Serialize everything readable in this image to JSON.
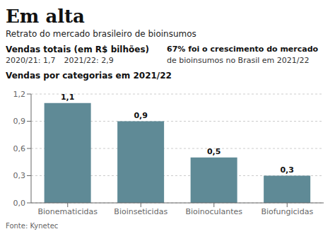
{
  "chart_data": {
    "type": "bar",
    "title": "Em alta",
    "subtitle": "Retrato do mercado brasileiro de bioinsumos",
    "annotations": [
      "Vendas totais (em R$ bilhões)",
      "2020/21: 1,7",
      "2021/22: 2,9",
      "67% foi o crescimento do mercado",
      "de bioinsumos no Brasil em 2021/22",
      "Vendas por categorias em 2021/22",
      "Fonte: Kynetec"
    ],
    "categories": [
      "Bionematicidas",
      "Bioinseticidas",
      "Bioinoculantes",
      "Biofungicidas"
    ],
    "values": [
      1.1,
      0.9,
      0.5,
      0.3
    ],
    "value_labels": [
      "1,1",
      "0,9",
      "0,5",
      "0,3"
    ],
    "color": "#5f8a96",
    "ylim": [
      0,
      1.2
    ],
    "yticks": [
      {
        "value": 0.0,
        "label": "0,0"
      },
      {
        "value": 0.3,
        "label": "0,3"
      },
      {
        "value": 0.6,
        "label": "0,6"
      },
      {
        "value": 0.9,
        "label": "0,9"
      },
      {
        "value": 1.2,
        "label": "1,2"
      }
    ],
    "grid": true,
    "data_labels": true
  }
}
